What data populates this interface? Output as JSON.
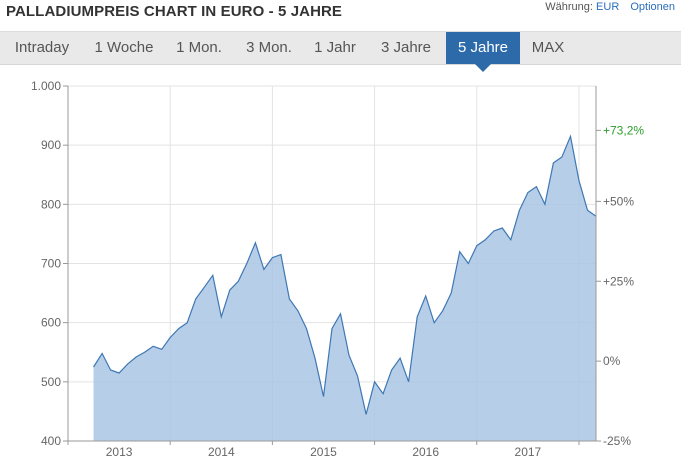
{
  "header": {
    "title": "PALLADIUMPREIS CHART IN EURO - 5 JAHRE",
    "currency_label": "Währung:",
    "currency_value": "EUR",
    "options_label": "Optionen"
  },
  "tabs": [
    {
      "label": "Intraday",
      "active": false
    },
    {
      "label": "1 Woche",
      "active": false
    },
    {
      "label": "1 Mon.",
      "active": false
    },
    {
      "label": "3 Mon.",
      "active": false
    },
    {
      "label": "1 Jahr",
      "active": false
    },
    {
      "label": "3 Jahre",
      "active": false
    },
    {
      "label": "5 Jahre",
      "active": true
    },
    {
      "label": "MAX",
      "active": false
    }
  ],
  "colors": {
    "area_fill": "#a9c6e4",
    "line": "#3f77b3",
    "active_tab": "#2c6aa9",
    "highlight_label": "#2e9e2e"
  },
  "chart_data": {
    "type": "area",
    "title": "PALLADIUMPREIS CHART IN EURO - 5 JAHRE",
    "xlabel": "",
    "ylabel": "",
    "unit": "EUR",
    "x_ticks": [
      "2013",
      "2014",
      "2015",
      "2016",
      "2017"
    ],
    "y_ticks": [
      "400",
      "500",
      "600",
      "700",
      "800",
      "900",
      "1.000"
    ],
    "ylim": [
      400,
      1000
    ],
    "y_ticks_right": [
      {
        "label": "-25%",
        "value": 400
      },
      {
        "label": "0%",
        "value": 535
      },
      {
        "label": "+25%",
        "value": 670
      },
      {
        "label": "+50%",
        "value": 805
      },
      {
        "label": "+73,2%",
        "value": 925,
        "highlight": true
      }
    ],
    "grid": true,
    "x": [
      "2013-04",
      "2013-05",
      "2013-06",
      "2013-07",
      "2013-08",
      "2013-09",
      "2013-10",
      "2013-11",
      "2013-12",
      "2014-01",
      "2014-02",
      "2014-03",
      "2014-04",
      "2014-05",
      "2014-06",
      "2014-07",
      "2014-08",
      "2014-09",
      "2014-10",
      "2014-11",
      "2014-12",
      "2015-01",
      "2015-02",
      "2015-03",
      "2015-04",
      "2015-05",
      "2015-06",
      "2015-07",
      "2015-08",
      "2015-09",
      "2015-10",
      "2015-11",
      "2015-12",
      "2016-01",
      "2016-02",
      "2016-03",
      "2016-04",
      "2016-05",
      "2016-06",
      "2016-07",
      "2016-08",
      "2016-09",
      "2016-10",
      "2016-11",
      "2016-12",
      "2017-01",
      "2017-02",
      "2017-03",
      "2017-04",
      "2017-05",
      "2017-06",
      "2017-07",
      "2017-08",
      "2017-09",
      "2017-10",
      "2017-11",
      "2017-12",
      "2018-01",
      "2018-02",
      "2018-03"
    ],
    "values": [
      525,
      548,
      520,
      515,
      530,
      542,
      550,
      560,
      555,
      575,
      590,
      600,
      640,
      660,
      680,
      610,
      655,
      670,
      700,
      735,
      690,
      710,
      715,
      640,
      620,
      590,
      540,
      475,
      590,
      615,
      545,
      510,
      445,
      500,
      480,
      520,
      540,
      500,
      610,
      645,
      600,
      620,
      650,
      720,
      700,
      730,
      740,
      755,
      760,
      740,
      790,
      820,
      830,
      800,
      870,
      880,
      915,
      840,
      790,
      780
    ]
  }
}
